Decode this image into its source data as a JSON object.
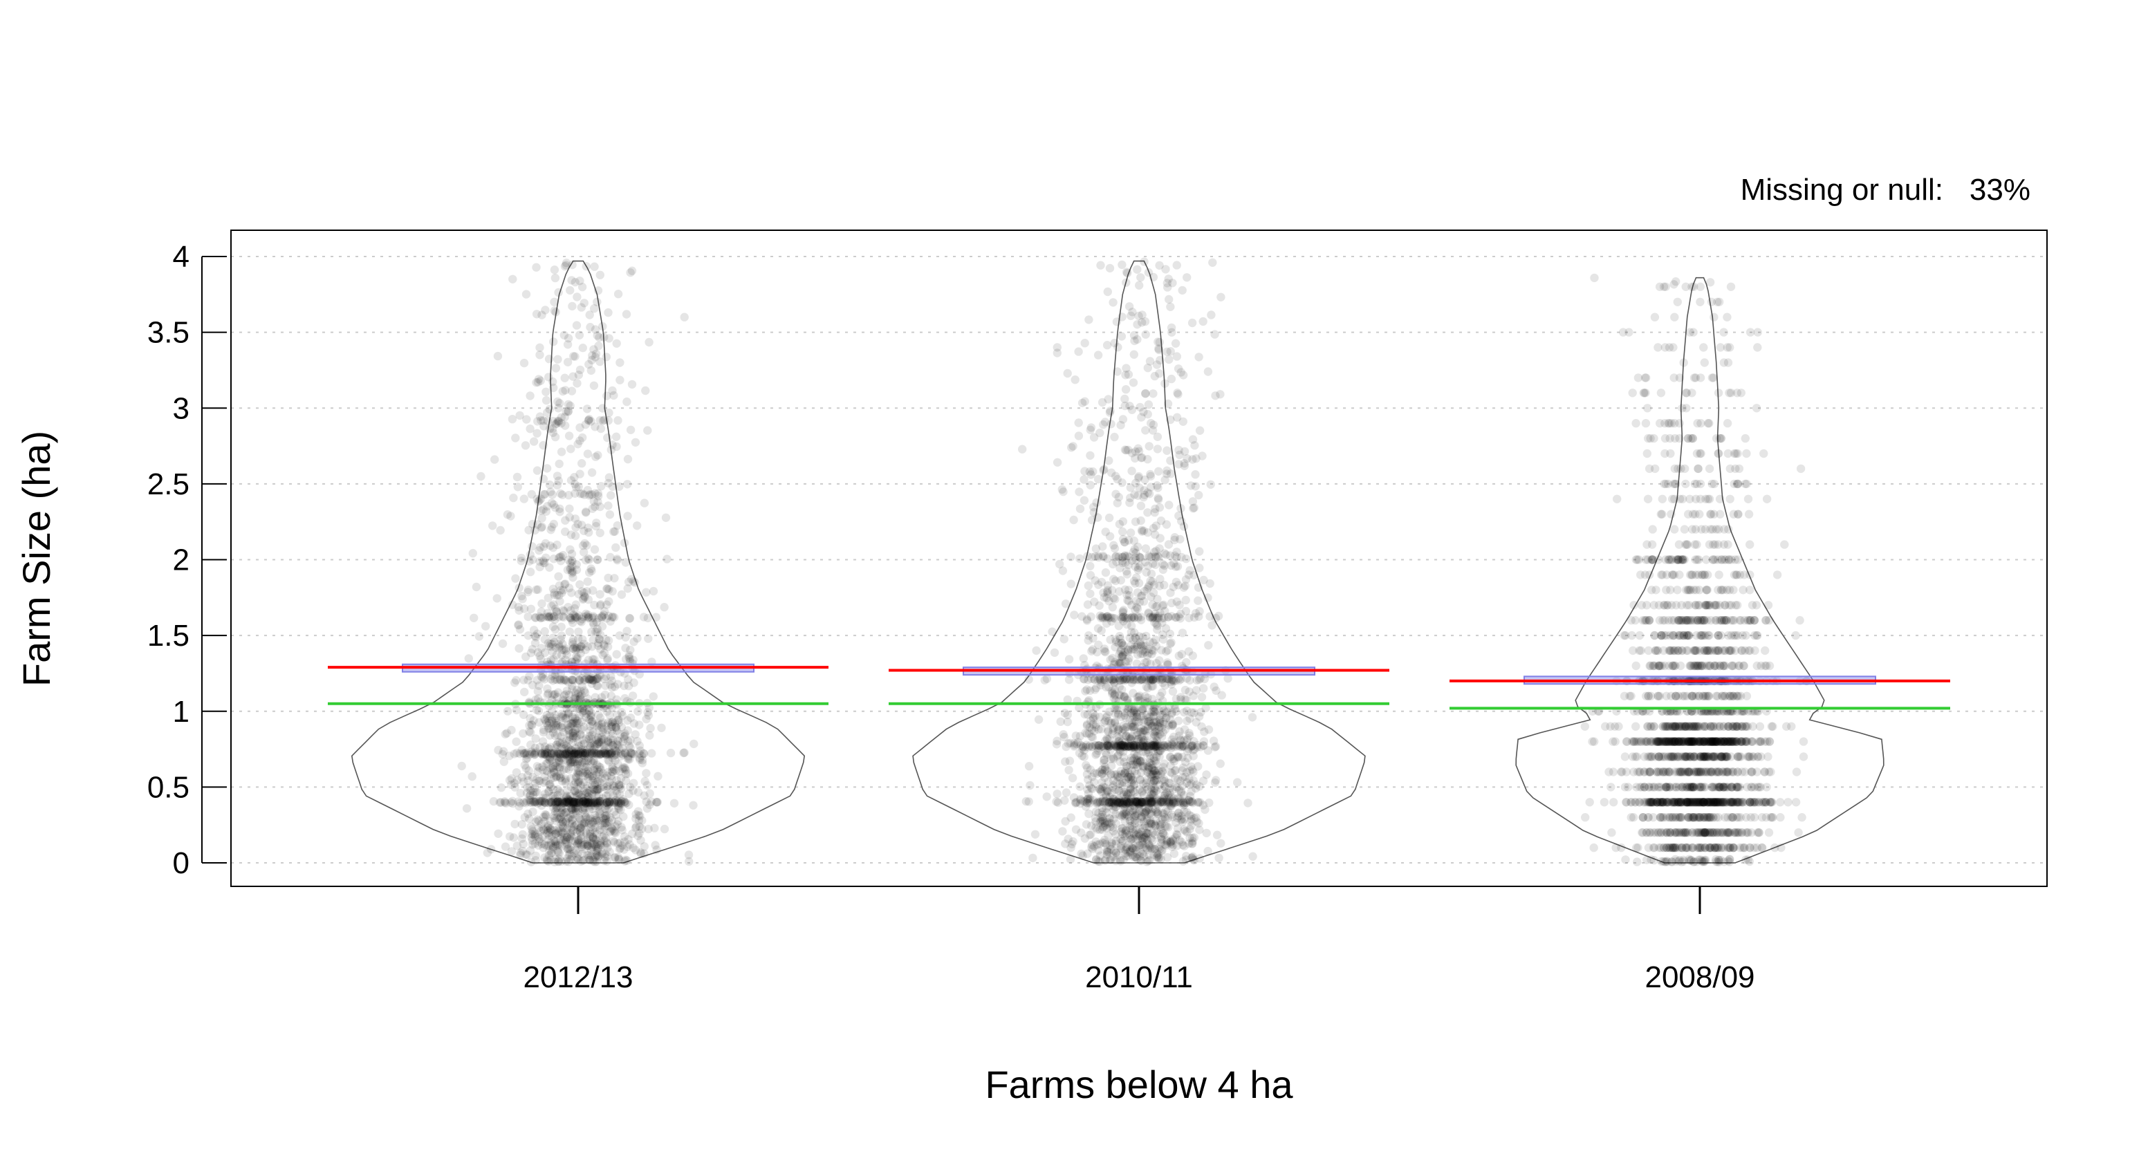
{
  "chart_data": {
    "type": "scatter",
    "subtype": "violin-with-jittered-points",
    "title": "",
    "xlabel": "Farms below 4 ha",
    "ylabel": "Farm Size (ha)",
    "annotation": {
      "label": "Missing or null:",
      "value": "33%"
    },
    "categories": [
      "2012/13",
      "2010/11",
      "2008/09"
    ],
    "ylim": [
      0,
      4
    ],
    "yticks": [
      "0",
      "0.5",
      "1",
      "1.5",
      "2",
      "2.5",
      "3",
      "3.5",
      "4"
    ],
    "grid": "horizontal dotted",
    "legend": "none",
    "colors": {
      "points": "#000000",
      "mean_line": "#ff0000",
      "median_line": "#33cc33",
      "mean_ci_box": "#8080e6",
      "violin_outline": "#555555",
      "grid": "#cccccc"
    },
    "series": [
      {
        "category": "2012/13",
        "mean": 1.29,
        "median": 1.05,
        "mean_ci": [
          1.26,
          1.31
        ],
        "max": 3.97,
        "violin_profile_y": [
          0,
          0.2,
          0.45,
          0.7,
          0.9,
          1.05,
          1.2,
          1.4,
          1.6,
          1.8,
          2.0,
          2.3,
          2.6,
          2.85,
          3.0,
          3.2,
          3.5,
          3.75,
          3.9,
          3.97
        ],
        "violin_profile_width": [
          0.18,
          0.55,
          0.85,
          0.9,
          0.78,
          0.58,
          0.45,
          0.36,
          0.3,
          0.24,
          0.2,
          0.165,
          0.14,
          0.12,
          0.105,
          0.11,
          0.1,
          0.075,
          0.045,
          0.02
        ],
        "point_density": [
          {
            "range": [
              0,
              0.5
            ],
            "weight": 34
          },
          {
            "range": [
              0.5,
              1.0
            ],
            "weight": 30
          },
          {
            "range": [
              1.0,
              1.5
            ],
            "weight": 16
          },
          {
            "range": [
              1.5,
              2.0
            ],
            "weight": 9
          },
          {
            "range": [
              2.0,
              2.5
            ],
            "weight": 6
          },
          {
            "range": [
              2.5,
              3.0
            ],
            "weight": 4
          },
          {
            "range": [
              3.0,
              3.5
            ],
            "weight": 3
          },
          {
            "range": [
              3.5,
              4.0
            ],
            "weight": 2
          }
        ],
        "bands": [
          0.4,
          0.72,
          1.05,
          1.21,
          1.62,
          2.0,
          2.43,
          2.92
        ]
      },
      {
        "category": "2010/11",
        "mean": 1.27,
        "median": 1.05,
        "mean_ci": [
          1.24,
          1.29
        ],
        "max": 3.97,
        "violin_profile_y": [
          0,
          0.2,
          0.45,
          0.7,
          0.9,
          1.05,
          1.2,
          1.4,
          1.6,
          1.8,
          2.0,
          2.3,
          2.6,
          2.85,
          3.0,
          3.2,
          3.5,
          3.75,
          3.9,
          3.97
        ],
        "violin_profile_width": [
          0.18,
          0.55,
          0.85,
          0.9,
          0.75,
          0.55,
          0.45,
          0.37,
          0.3,
          0.25,
          0.21,
          0.17,
          0.14,
          0.12,
          0.105,
          0.1,
          0.085,
          0.065,
          0.04,
          0.02
        ],
        "point_density": [
          {
            "range": [
              0,
              0.5
            ],
            "weight": 32
          },
          {
            "range": [
              0.5,
              1.0
            ],
            "weight": 30
          },
          {
            "range": [
              1.0,
              1.5
            ],
            "weight": 17
          },
          {
            "range": [
              1.5,
              2.0
            ],
            "weight": 10
          },
          {
            "range": [
              2.0,
              2.5
            ],
            "weight": 6
          },
          {
            "range": [
              2.5,
              3.0
            ],
            "weight": 4
          },
          {
            "range": [
              3.0,
              3.5
            ],
            "weight": 3
          },
          {
            "range": [
              3.5,
              4.0
            ],
            "weight": 2
          }
        ],
        "bands": [
          0.4,
          0.77,
          1.21,
          1.62,
          2.02
        ]
      },
      {
        "category": "2008/09",
        "mean": 1.2,
        "median": 1.02,
        "mean_ci": [
          1.18,
          1.23
        ],
        "max": 3.86,
        "violin_profile_y": [
          0,
          0.2,
          0.45,
          0.65,
          0.82,
          0.95,
          1.05,
          1.2,
          1.4,
          1.6,
          1.8,
          2.0,
          2.2,
          2.4,
          2.6,
          2.8,
          3.0,
          3.3,
          3.6,
          3.8,
          3.86
        ],
        "violin_profile_width": [
          0.14,
          0.45,
          0.68,
          0.73,
          0.72,
          0.42,
          0.5,
          0.45,
          0.37,
          0.29,
          0.22,
          0.17,
          0.12,
          0.09,
          0.08,
          0.07,
          0.075,
          0.065,
          0.05,
          0.03,
          0.015
        ],
        "point_density": [
          {
            "range": [
              0,
              0.5
            ],
            "weight": 30
          },
          {
            "range": [
              0.5,
              1.0
            ],
            "weight": 33
          },
          {
            "range": [
              1.0,
              1.5
            ],
            "weight": 18
          },
          {
            "range": [
              1.5,
              2.0
            ],
            "weight": 9
          },
          {
            "range": [
              2.0,
              2.5
            ],
            "weight": 5
          },
          {
            "range": [
              2.5,
              3.0
            ],
            "weight": 3
          },
          {
            "range": [
              3.0,
              3.5
            ],
            "weight": 2
          },
          {
            "range": [
              3.5,
              4.0
            ],
            "weight": 1
          }
        ],
        "value_step": 0.1,
        "bands": [
          0.4,
          0.8,
          1.21,
          1.62,
          2.02
        ]
      }
    ]
  }
}
